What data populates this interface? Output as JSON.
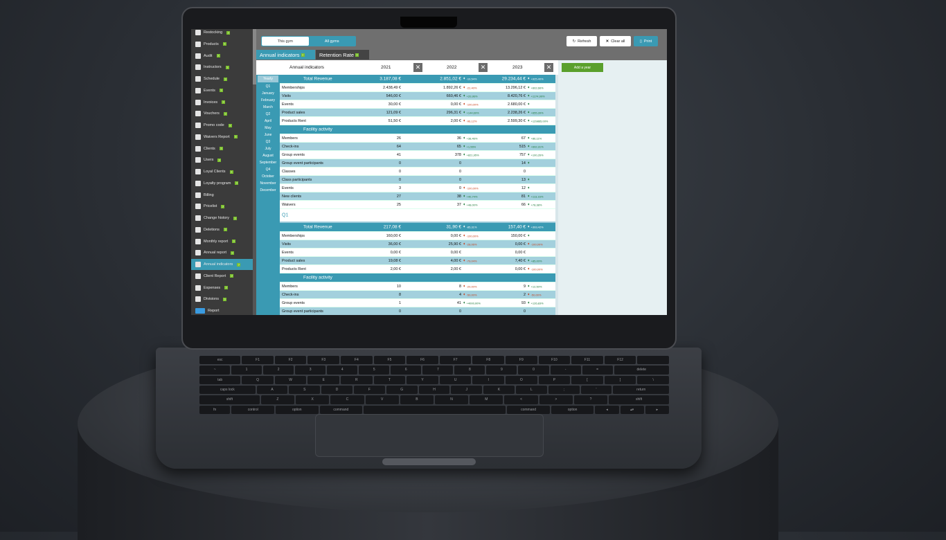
{
  "sidebar": {
    "items": [
      {
        "label": "Restocking",
        "icon": "cart-icon",
        "help": true
      },
      {
        "label": "Products",
        "icon": "products-icon",
        "help": true
      },
      {
        "label": "Audit",
        "icon": "search-icon",
        "help": true
      },
      {
        "label": "Instructors",
        "icon": "person-icon",
        "help": true
      },
      {
        "label": "Schedule",
        "icon": "calendar-icon",
        "help": true
      },
      {
        "label": "Events",
        "icon": "events-icon",
        "help": true
      },
      {
        "label": "Invoices",
        "icon": "document-icon",
        "help": true
      },
      {
        "label": "Vouchers",
        "icon": "percent-icon",
        "help": true
      },
      {
        "label": "Promo code",
        "icon": "promo-icon",
        "help": true
      },
      {
        "label": "Waivers Report",
        "icon": "edit-icon",
        "help": true
      },
      {
        "label": "Clients",
        "icon": "person-icon",
        "help": true
      },
      {
        "label": "Users",
        "icon": "person-icon",
        "help": true
      },
      {
        "label": "Loyal Clients",
        "icon": "star-icon",
        "help": true
      },
      {
        "label": "Loyalty program",
        "icon": "star-icon",
        "help": true
      },
      {
        "label": "Billing",
        "icon": "billing-icon",
        "help": false
      },
      {
        "label": "Pricelist",
        "icon": "pricelist-icon",
        "help": true
      },
      {
        "label": "Change history",
        "icon": "history-icon",
        "help": true
      },
      {
        "label": "Deletions",
        "icon": "x-icon",
        "help": true
      },
      {
        "label": "Monthly report",
        "icon": "report-icon",
        "help": true
      },
      {
        "label": "Annual report",
        "icon": "report-icon",
        "help": true
      },
      {
        "label": "Annual indicators",
        "icon": "chart-icon",
        "help": true,
        "active": true
      },
      {
        "label": "Client Report",
        "icon": "person-icon",
        "help": true
      },
      {
        "label": "Expenses",
        "icon": "expenses-icon",
        "help": true
      },
      {
        "label": "Divisions",
        "icon": "divisions-icon",
        "help": true
      },
      {
        "label": "Report",
        "icon": "coolfit-logo-icon",
        "help": false
      }
    ],
    "help_mark": "?"
  },
  "toggle": {
    "this_gym": "This gym",
    "all_gyms": "All gyms",
    "selected": "This gym"
  },
  "tabs": [
    {
      "label": "Annual indicators",
      "active": true
    },
    {
      "label": "Retention Rate",
      "active": false
    }
  ],
  "toolbar": {
    "refresh": "Refresh",
    "clear_all": "Clear all",
    "print": "Print"
  },
  "table": {
    "title": "Annual indicators",
    "years": [
      "2021",
      "2022",
      "2023"
    ],
    "remove_mark": "✕",
    "add_year": "Add a year"
  },
  "periods": [
    "Yearly",
    "Q1",
    "January",
    "February",
    "March",
    "Q2",
    "April",
    "May",
    "June",
    "Q3",
    "July",
    "August",
    "September",
    "Q4",
    "October",
    "November",
    "December"
  ],
  "selected_period": "Yearly",
  "colors": {
    "accent": "#3a9ab3",
    "up": "#1f7a3a",
    "down": "#c8441e",
    "add": "#5aa02c"
  },
  "rows": [
    {
      "type": "sec",
      "label": "Total Revenue",
      "v": [
        "3.187,08 €",
        "2.851,02 €",
        "29.234,44 €"
      ],
      "d": [
        null,
        [
          "down",
          "-10,54%"
        ],
        [
          "up",
          "+925,40%"
        ]
      ]
    },
    {
      "label": "Memberships",
      "v": [
        "2.438,49 €",
        "1.892,26 €",
        "13.296,12 €"
      ],
      "d": [
        null,
        [
          "down",
          "-22,40%"
        ],
        [
          "up",
          "+602,66%"
        ]
      ]
    },
    {
      "label": "Visits",
      "v": [
        "546,00 €",
        "660,46 €",
        "8.420,76 €"
      ],
      "d": [
        null,
        [
          "up",
          "+20,96%"
        ],
        [
          "up",
          "+1174,99%"
        ]
      ]
    },
    {
      "label": "Events",
      "v": [
        "30,00 €",
        "0,00 €",
        "2.680,00 €"
      ],
      "d": [
        null,
        [
          "down",
          "-100,00%"
        ],
        [
          "up",
          ""
        ]
      ]
    },
    {
      "label": "Product sales",
      "v": [
        "121,09 €",
        "296,31 €",
        "2.238,26 €"
      ],
      "d": [
        null,
        [
          "up",
          "+144,69%"
        ],
        [
          "up",
          "+655,39%"
        ]
      ]
    },
    {
      "label": "Products Rent",
      "v": [
        "51,50 €",
        "2,00 €",
        "2.599,30 €"
      ],
      "d": [
        null,
        [
          "down",
          "-96,12%"
        ],
        [
          "up",
          "+129865,00%"
        ]
      ]
    },
    {
      "type": "sec",
      "label": "Facility activity",
      "v": [
        "",
        "",
        ""
      ],
      "d": [
        null,
        null,
        null
      ]
    },
    {
      "label": "Members",
      "v": [
        "26",
        "36",
        "67"
      ],
      "d": [
        null,
        [
          "up",
          "+38,46%"
        ],
        [
          "up",
          "+86,11%"
        ]
      ]
    },
    {
      "label": "Check-ins",
      "v": [
        "64",
        "65",
        "515"
      ],
      "d": [
        null,
        [
          "up",
          "+1,56%"
        ],
        [
          "up",
          "+692,31%"
        ]
      ]
    },
    {
      "label": "Group events",
      "v": [
        "41",
        "378",
        "757"
      ],
      "d": [
        null,
        [
          "up",
          "+821,95%"
        ],
        [
          "up",
          "+100,26%"
        ]
      ]
    },
    {
      "label": "Group event participants",
      "v": [
        "0",
        "0",
        "14"
      ],
      "d": [
        null,
        null,
        [
          "up",
          ""
        ]
      ]
    },
    {
      "label": "Classes",
      "v": [
        "0",
        "0",
        "0"
      ],
      "d": [
        null,
        null,
        null
      ]
    },
    {
      "label": "Class participants",
      "v": [
        "0",
        "0",
        "13"
      ],
      "d": [
        null,
        null,
        [
          "up",
          ""
        ]
      ]
    },
    {
      "label": "Events",
      "v": [
        "3",
        "0",
        "12"
      ],
      "d": [
        null,
        [
          "down",
          "-100,00%"
        ],
        [
          "up",
          ""
        ]
      ]
    },
    {
      "label": "New clients",
      "v": [
        "27",
        "38",
        "81"
      ],
      "d": [
        null,
        [
          "up",
          "+40,74%"
        ],
        [
          "up",
          "+113,16%"
        ]
      ]
    },
    {
      "label": "Waivers",
      "v": [
        "25",
        "37",
        "66"
      ],
      "d": [
        null,
        [
          "up",
          "+48,00%"
        ],
        [
          "up",
          "+78,38%"
        ]
      ]
    },
    {
      "type": "per",
      "label": "Q1"
    },
    {
      "type": "sec",
      "label": "Total Revenue",
      "v": [
        "217,08 €",
        "31,90 €",
        "157,40 €"
      ],
      "d": [
        null,
        [
          "down",
          "-85,31%"
        ],
        [
          "up",
          "+393,42%"
        ]
      ]
    },
    {
      "label": "Memberships",
      "v": [
        "160,00 €",
        "0,00 €",
        "150,00 €"
      ],
      "d": [
        null,
        [
          "down",
          "-100,00%"
        ],
        [
          "up",
          ""
        ]
      ]
    },
    {
      "label": "Visits",
      "v": [
        "36,00 €",
        "25,90 €",
        "0,00 €"
      ],
      "d": [
        null,
        [
          "down",
          "-28,06%"
        ],
        [
          "down",
          "-100,00%"
        ]
      ]
    },
    {
      "label": "Events",
      "v": [
        "0,00 €",
        "0,00 €",
        "0,00 €"
      ],
      "d": [
        null,
        null,
        null
      ]
    },
    {
      "label": "Product sales",
      "v": [
        "19,08 €",
        "4,00 €",
        "7,40 €"
      ],
      "d": [
        null,
        [
          "down",
          "-79,04%"
        ],
        [
          "up",
          "+85,00%"
        ]
      ]
    },
    {
      "label": "Products Rent",
      "v": [
        "2,00 €",
        "2,00 €",
        "0,00 €"
      ],
      "d": [
        null,
        null,
        [
          "down",
          "-100,00%"
        ]
      ]
    },
    {
      "type": "sec",
      "label": "Facility activity",
      "v": [
        "",
        "",
        ""
      ],
      "d": [
        null,
        null,
        null
      ]
    },
    {
      "label": "Members",
      "v": [
        "10",
        "8",
        "9"
      ],
      "d": [
        null,
        [
          "down",
          "-20,00%"
        ],
        [
          "up",
          "+12,50%"
        ]
      ]
    },
    {
      "label": "Check-ins",
      "v": [
        "8",
        "4",
        "2"
      ],
      "d": [
        null,
        [
          "down",
          "-50,00%"
        ],
        [
          "down",
          "-50,00%"
        ]
      ]
    },
    {
      "label": "Group events",
      "v": [
        "1",
        "41",
        "93"
      ],
      "d": [
        null,
        [
          "up",
          "+4000,00%"
        ],
        [
          "up",
          "+126,83%"
        ]
      ]
    },
    {
      "label": "Group event participants",
      "v": [
        "0",
        "0",
        "0"
      ],
      "d": [
        null,
        null,
        null
      ]
    }
  ],
  "keyboard": [
    [
      "esc",
      "F1",
      "F2",
      "F3",
      "F4",
      "F5",
      "F6",
      "F7",
      "F8",
      "F9",
      "F10",
      "F11",
      "F12",
      ""
    ],
    [
      "~",
      "1",
      "2",
      "3",
      "4",
      "5",
      "6",
      "7",
      "8",
      "9",
      "0",
      "-",
      "=",
      "delete"
    ],
    [
      "tab",
      "Q",
      "W",
      "E",
      "R",
      "T",
      "Y",
      "U",
      "I",
      "O",
      "P",
      "[",
      "]",
      "\\"
    ],
    [
      "caps lock",
      "A",
      "S",
      "D",
      "F",
      "G",
      "H",
      "J",
      "K",
      "L",
      ";",
      "'",
      "return"
    ],
    [
      "shift",
      "Z",
      "X",
      "C",
      "V",
      "B",
      "N",
      "M",
      "<",
      ">",
      "?",
      "shift"
    ],
    [
      "fn",
      "control",
      "option",
      "command",
      " ",
      "command",
      "option",
      "◂",
      "▴▾",
      "▸"
    ]
  ]
}
